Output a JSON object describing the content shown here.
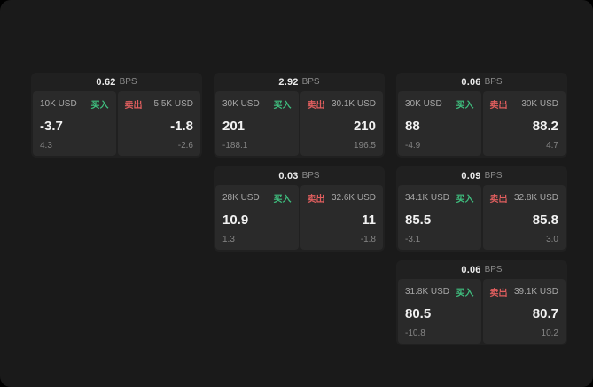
{
  "unit_label": "BPS",
  "colors": {
    "buy": "#3fbf7f",
    "sell": "#e05e5e",
    "background": "#1a1a1a",
    "panel": "#2a2a2a"
  },
  "cards": [
    {
      "bps": "0.62",
      "buy": {
        "amount": "10K USD",
        "label": "买入",
        "value": "-3.7",
        "delta": "4.3"
      },
      "sell": {
        "label": "卖出",
        "amount": "5.5K USD",
        "value": "-1.8",
        "delta": "-2.6"
      }
    },
    {
      "bps": "2.92",
      "buy": {
        "amount": "30K USD",
        "label": "买入",
        "value": "201",
        "delta": "-188.1"
      },
      "sell": {
        "label": "卖出",
        "amount": "30.1K USD",
        "value": "210",
        "delta": "196.5"
      }
    },
    {
      "bps": "0.06",
      "buy": {
        "amount": "30K USD",
        "label": "买入",
        "value": "88",
        "delta": "-4.9"
      },
      "sell": {
        "label": "卖出",
        "amount": "30K USD",
        "value": "88.2",
        "delta": "4.7"
      }
    },
    {
      "bps": "0.03",
      "buy": {
        "amount": "28K USD",
        "label": "买入",
        "value": "10.9",
        "delta": "1.3"
      },
      "sell": {
        "label": "卖出",
        "amount": "32.6K USD",
        "value": "11",
        "delta": "-1.8"
      }
    },
    {
      "bps": "0.09",
      "buy": {
        "amount": "34.1K USD",
        "label": "买入",
        "value": "85.5",
        "delta": "-3.1"
      },
      "sell": {
        "label": "卖出",
        "amount": "32.8K USD",
        "value": "85.8",
        "delta": "3.0"
      }
    },
    {
      "bps": "0.06",
      "buy": {
        "amount": "31.8K USD",
        "label": "买入",
        "value": "80.5",
        "delta": "-10.8"
      },
      "sell": {
        "label": "卖出",
        "amount": "39.1K USD",
        "value": "80.7",
        "delta": "10.2"
      }
    }
  ]
}
